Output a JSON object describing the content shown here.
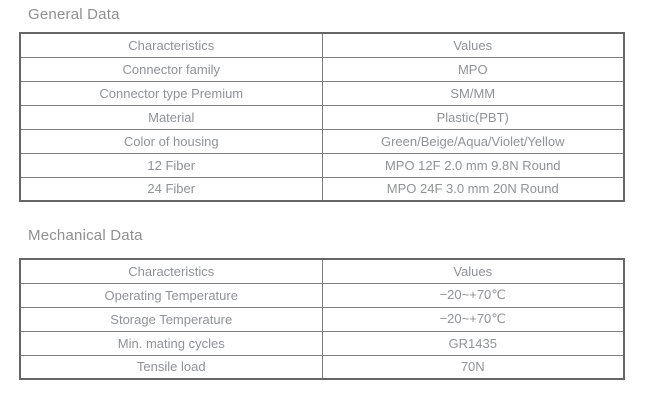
{
  "colors": {
    "background": "#ffffff",
    "heading_text": "#8f8f8f",
    "cell_text": "#8f9296",
    "border_outer": "#666666",
    "border_inner": "#7d7d7d"
  },
  "sections": [
    {
      "title": "General Data",
      "columns": [
        "Characteristics",
        "Values"
      ],
      "rows": [
        [
          "Connector family",
          "MPO"
        ],
        [
          "Connector type Premium",
          "SM/MM"
        ],
        [
          "Material",
          "Plastic(PBT)"
        ],
        [
          "Color of housing",
          "Green/Beige/Aqua/Violet/Yellow"
        ],
        [
          "12 Fiber",
          "MPO 12F 2.0 mm 9.8N Round"
        ],
        [
          "24 Fiber",
          "MPO 24F 3.0 mm 20N Round"
        ]
      ]
    },
    {
      "title": "Mechanical Data",
      "columns": [
        "Characteristics",
        "Values"
      ],
      "rows": [
        [
          "Operating Temperature",
          "−20~+70℃"
        ],
        [
          "Storage Temperature",
          "−20~+70℃"
        ],
        [
          "Min. mating cycles",
          "GR1435"
        ],
        [
          "Tensile load",
          "70N"
        ]
      ]
    }
  ]
}
